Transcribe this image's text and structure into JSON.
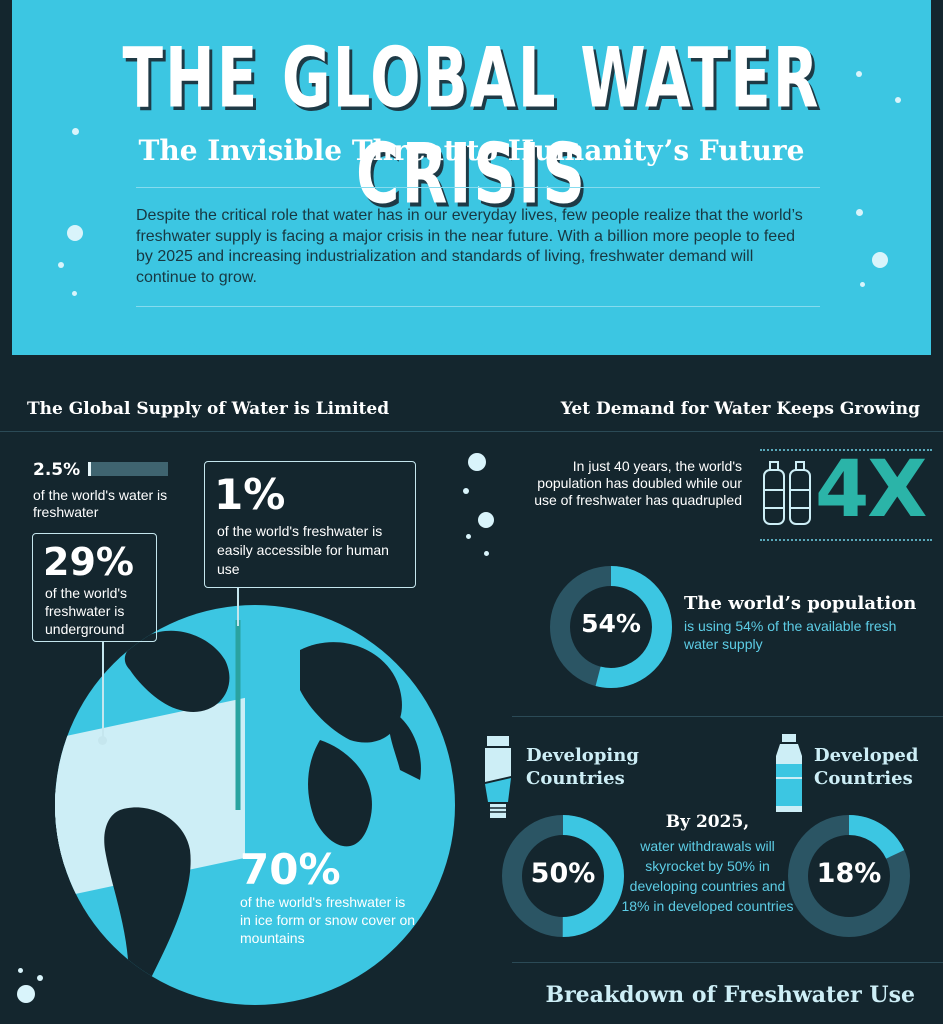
{
  "header": {
    "title": "THE GLOBAL WATER CRISIS",
    "subtitle": "The Invisible Threat to Humanity’s Future",
    "intro": "Despite the critical role that water has in our everyday lives, few people realize that the world’s freshwater supply is facing a major crisis in the near future. With a billion more people to feed by 2025 and increasing industrialization and standards of living, freshwater demand will continue to grow."
  },
  "supply": {
    "heading": "The Global Supply of Water is Limited",
    "stat1": {
      "value": "2.5%",
      "text": "of the world's water is freshwater",
      "fraction": 0.025
    },
    "stat2": {
      "value": "1%",
      "text": "of the world's freshwater is easily accessible for human use"
    },
    "stat3": {
      "value": "29%",
      "text": "of the world's freshwater is underground"
    },
    "stat4": {
      "value": "70%",
      "text": "of the world's freshwater is in ice form or snow cover on mountains"
    }
  },
  "demand": {
    "heading": "Yet Demand for Water Keeps Growing",
    "growth_text": "In just 40 years, the world's population has doubled while our use of freshwater has quadrupled",
    "multiplier": "4X",
    "population": {
      "value": "54%",
      "fraction": 0.54,
      "title": "The world’s population",
      "text": "is using 54% of the available fresh water supply"
    },
    "developing": {
      "label": "Developing Countries",
      "value": "50%",
      "fraction": 0.5
    },
    "developed": {
      "label": "Developed Countries",
      "value": "18%",
      "fraction": 0.18
    },
    "forecast_title": "By 2025,",
    "forecast_text": "water withdrawals will skyrocket by 50% in developing countries and 18% in developed countries"
  },
  "breakdown": {
    "heading": "Breakdown of Freshwater Use"
  },
  "colors": {
    "accent": "#3cc6e2",
    "background": "#14262e",
    "donut_track": "#2b5564",
    "pale": "#cdeef6"
  }
}
